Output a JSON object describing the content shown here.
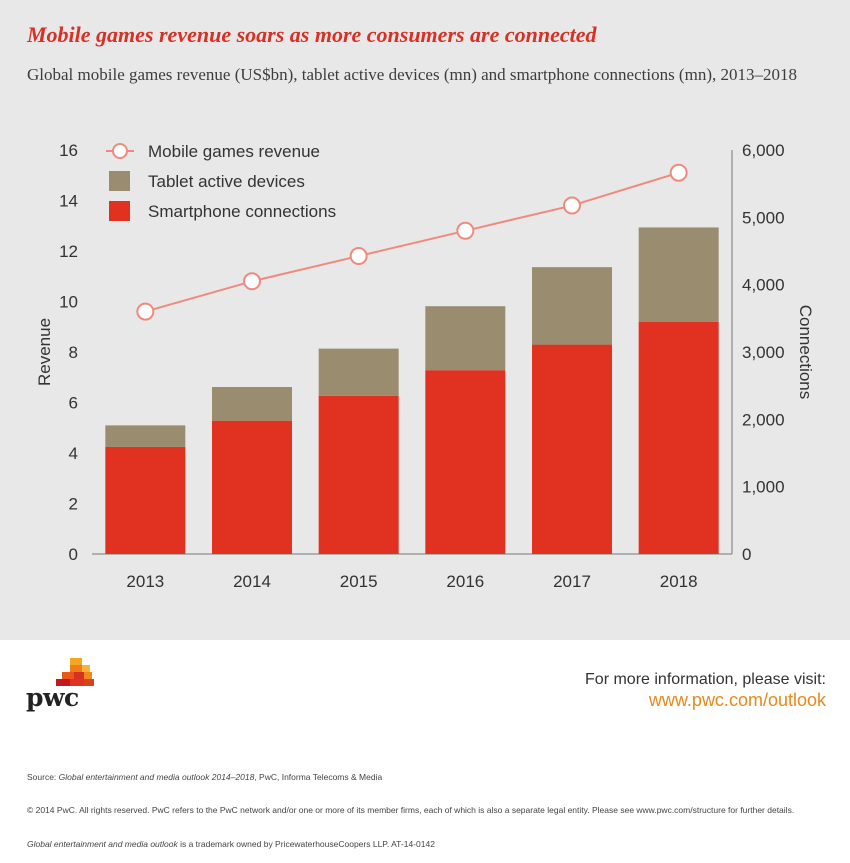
{
  "header": {
    "title": "Mobile games revenue soars as more consumers are connected",
    "subtitle": "Global mobile games revenue (US$bn), tablet active devices (mn) and smartphone connections (mn), 2013–2018"
  },
  "chart_data": {
    "type": "bar",
    "stacked": true,
    "categories": [
      "2013",
      "2014",
      "2015",
      "2016",
      "2017",
      "2018"
    ],
    "series": [
      {
        "name": "Smartphone connections",
        "type": "bar",
        "axis": "right",
        "color": "#e03121",
        "values": [
          1590,
          1980,
          2350,
          2730,
          3110,
          3450
        ]
      },
      {
        "name": "Tablet active devices",
        "type": "bar",
        "axis": "right",
        "color": "#9a8c6e",
        "values": [
          320,
          500,
          700,
          950,
          1150,
          1400
        ]
      },
      {
        "name": "Mobile games revenue",
        "type": "line",
        "axis": "left",
        "color": "#ef8a7e",
        "values": [
          9.6,
          10.8,
          11.8,
          12.8,
          13.8,
          15.1
        ]
      }
    ],
    "legend_order": [
      "Mobile games revenue",
      "Tablet active devices",
      "Smartphone connections"
    ],
    "ylabel": "Revenue",
    "y2label": "Connections",
    "ylim": [
      0,
      16
    ],
    "y2lim": [
      0,
      6000
    ],
    "yticks": [
      "0",
      "2",
      "4",
      "6",
      "8",
      "10",
      "12",
      "14",
      "16"
    ],
    "y2ticks": [
      "0",
      "1,000",
      "2,000",
      "3,000",
      "4,000",
      "5,000",
      "6,000"
    ],
    "grid": false,
    "legend_position": "top-left"
  },
  "footer": {
    "logo_text": "pwc",
    "info_label": "For more information, please visit:",
    "info_url": "www.pwc.com/outlook",
    "source_prefix": "Source: ",
    "source_title": "Global entertainment and media outlook 2014–2018",
    "source_rest": ", PwC, Informa Telecoms & Media",
    "copyright": "© 2014 PwC. All rights reserved. PwC refers to the PwC network and/or one or more of its member firms, each of which is also a separate legal entity. Please see www.pwc.com/structure for further details.",
    "trademark_title": "Global entertainment and media outlook",
    "trademark_rest": " is a trademark owned by PricewaterhouseCoopers LLP. AT-14-0142"
  }
}
